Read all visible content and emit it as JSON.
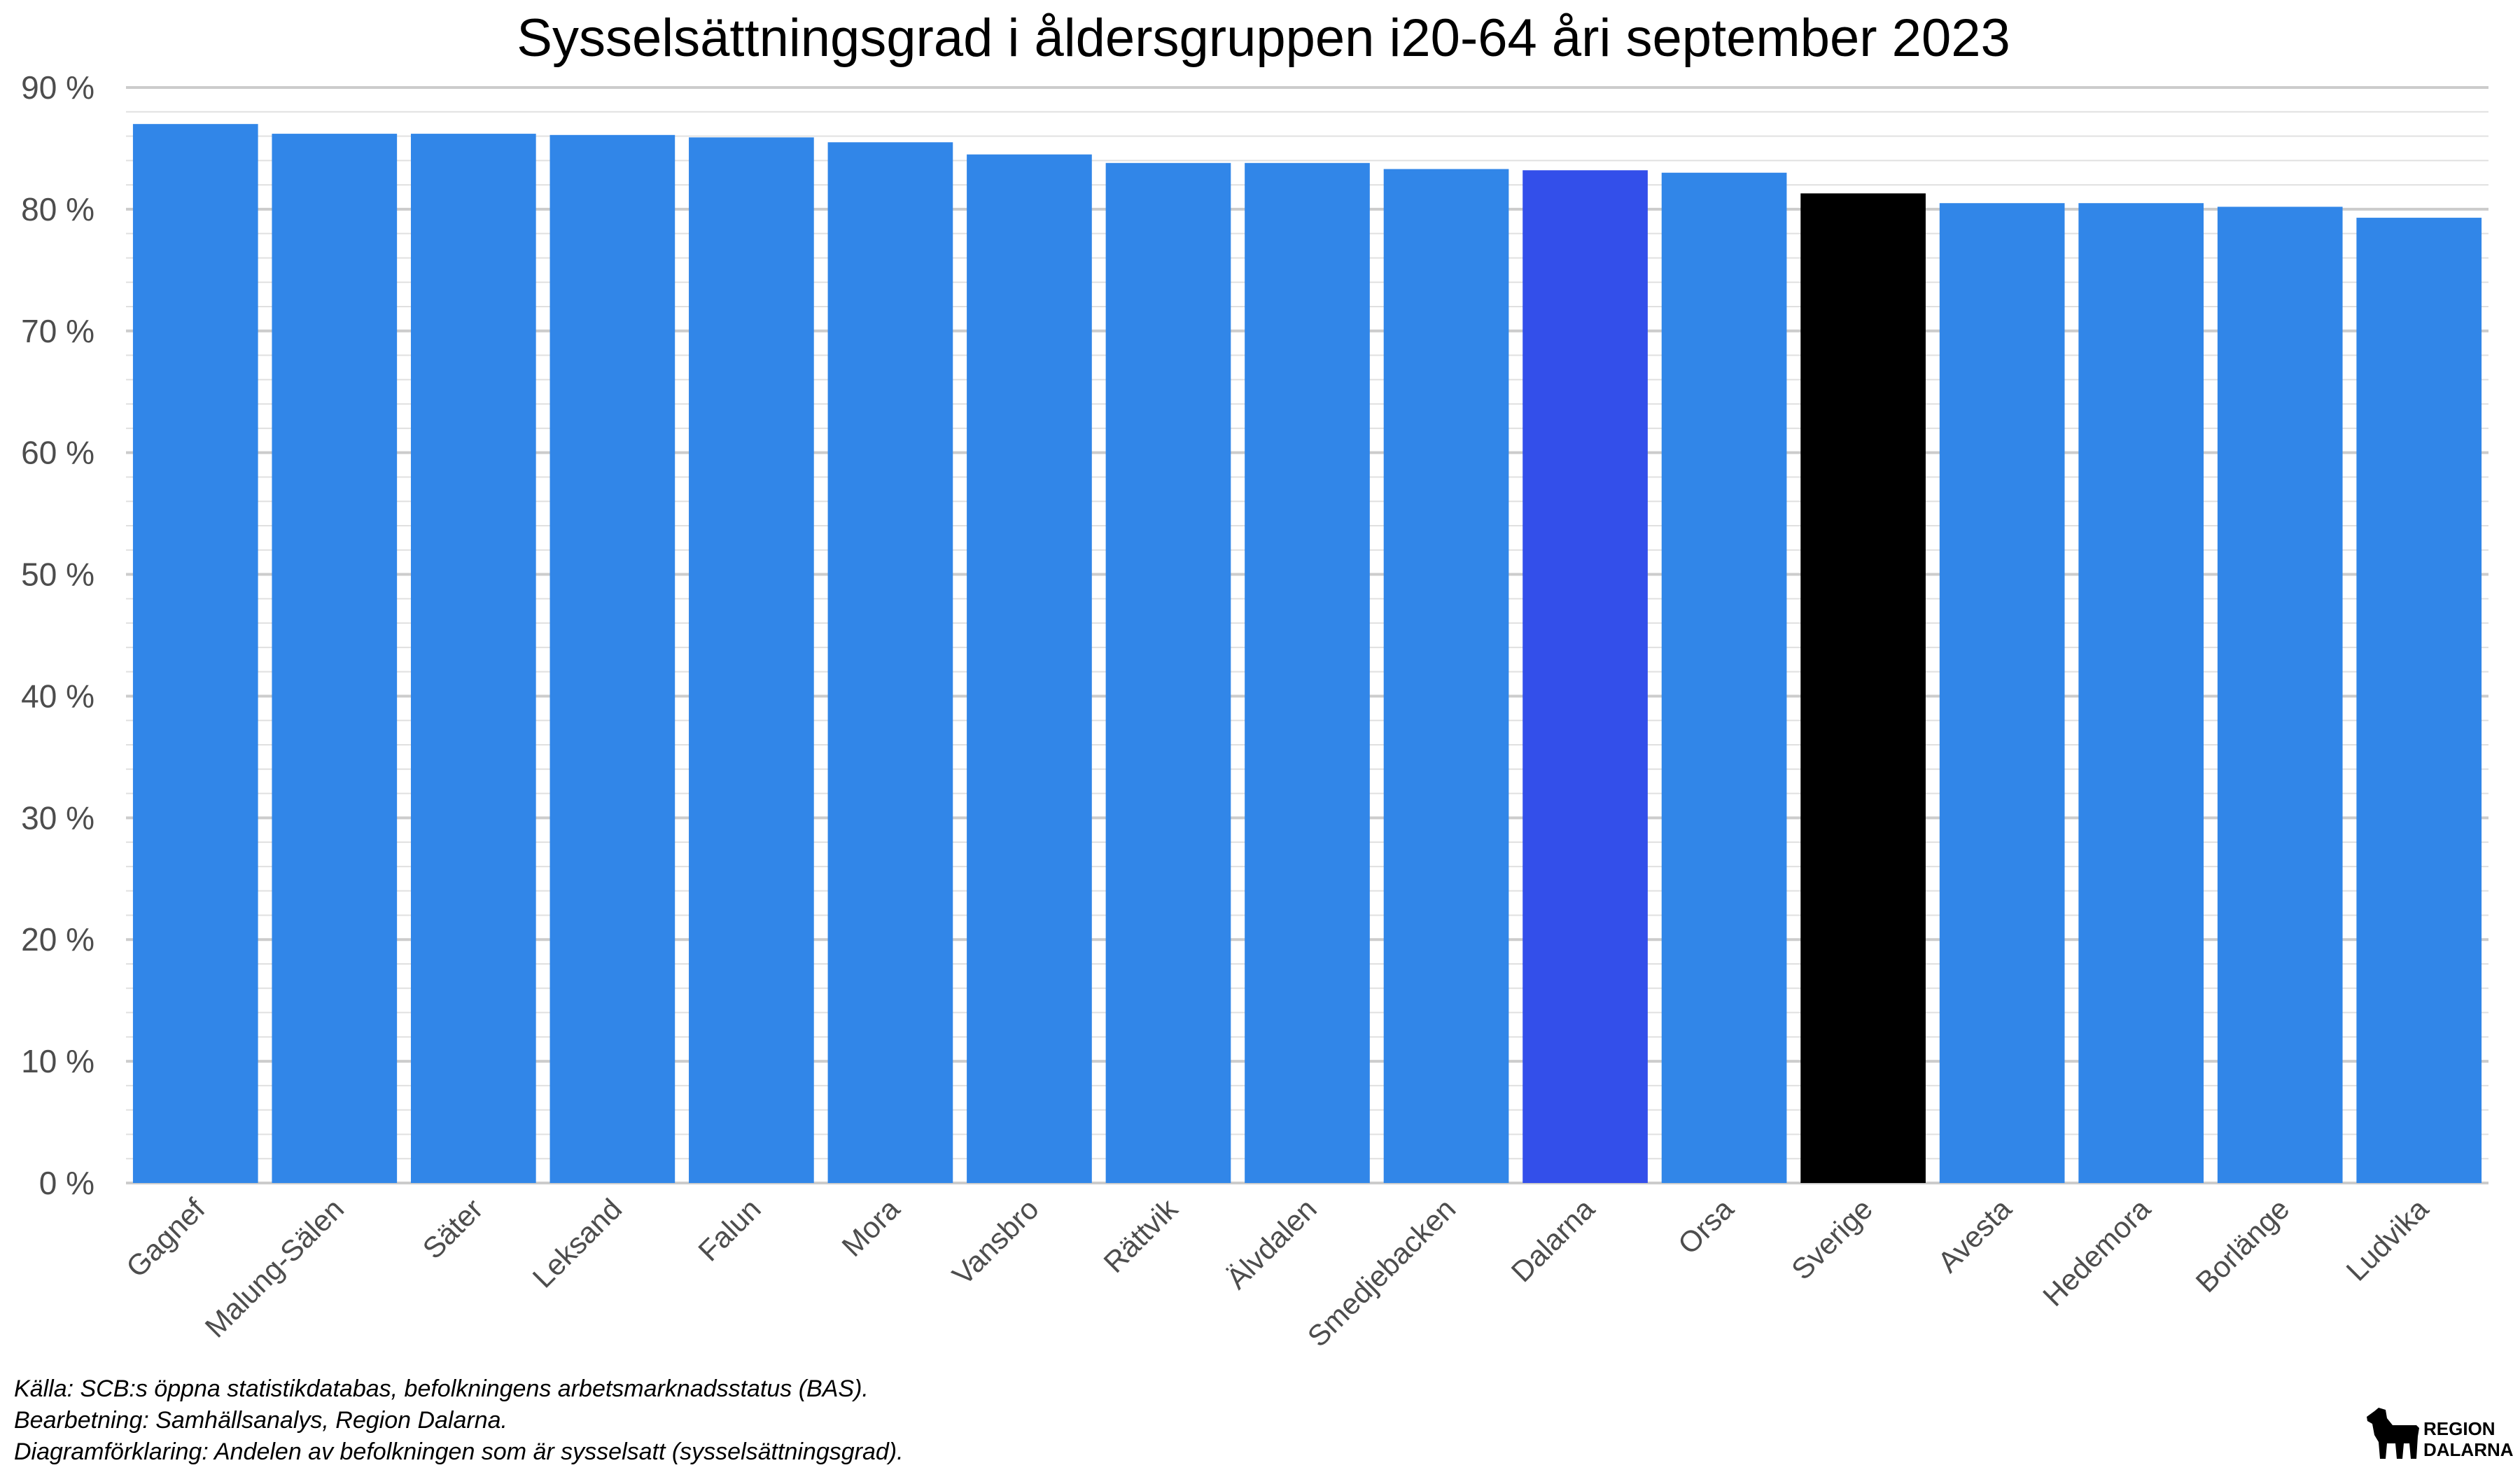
{
  "chart_data": {
    "type": "bar",
    "title": "Sysselsättningsgrad i åldersgruppen i20-64 åri september 2023",
    "xlabel": "",
    "ylabel": "",
    "ylim": [
      0,
      90
    ],
    "y_tick_values": [
      0,
      10,
      20,
      30,
      40,
      50,
      60,
      70,
      80,
      90
    ],
    "y_tick_labels": [
      "0 %",
      "10 %",
      "20 %",
      "30 %",
      "40 %",
      "50 %",
      "60 %",
      "70 %",
      "80 %",
      "90 %"
    ],
    "grid": true,
    "legend": "none",
    "categories": [
      "Gagnef",
      "Malung-Sälen",
      "Säter",
      "Leksand",
      "Falun",
      "Mora",
      "Vansbro",
      "Rättvik",
      "Älvdalen",
      "Smedjebacken",
      "Dalarna",
      "Orsa",
      "Sverige",
      "Avesta",
      "Hedemora",
      "Borlänge",
      "Ludvika"
    ],
    "values": [
      87.0,
      86.2,
      86.2,
      86.1,
      85.9,
      85.5,
      84.5,
      83.8,
      83.8,
      83.3,
      83.2,
      83.0,
      81.3,
      80.5,
      80.5,
      80.2,
      79.3
    ],
    "colors": {
      "default": "#3186e8",
      "Dalarna": "#334fea",
      "Sverige": "#000000"
    }
  },
  "caption": {
    "lines": [
      "Källa: SCB:s öppna statistikdatabas, befolkningens arbetsmarknadsstatus (BAS).",
      "Bearbetning: Samhällsanalys, Region Dalarna.",
      "Diagramförklaring: Andelen av befolkningen som är sysselsatt (sysselsättningsgrad)."
    ]
  },
  "logo": {
    "line1": "REGION",
    "line2": "DALARNA",
    "icon": "dala-horse-icon"
  }
}
